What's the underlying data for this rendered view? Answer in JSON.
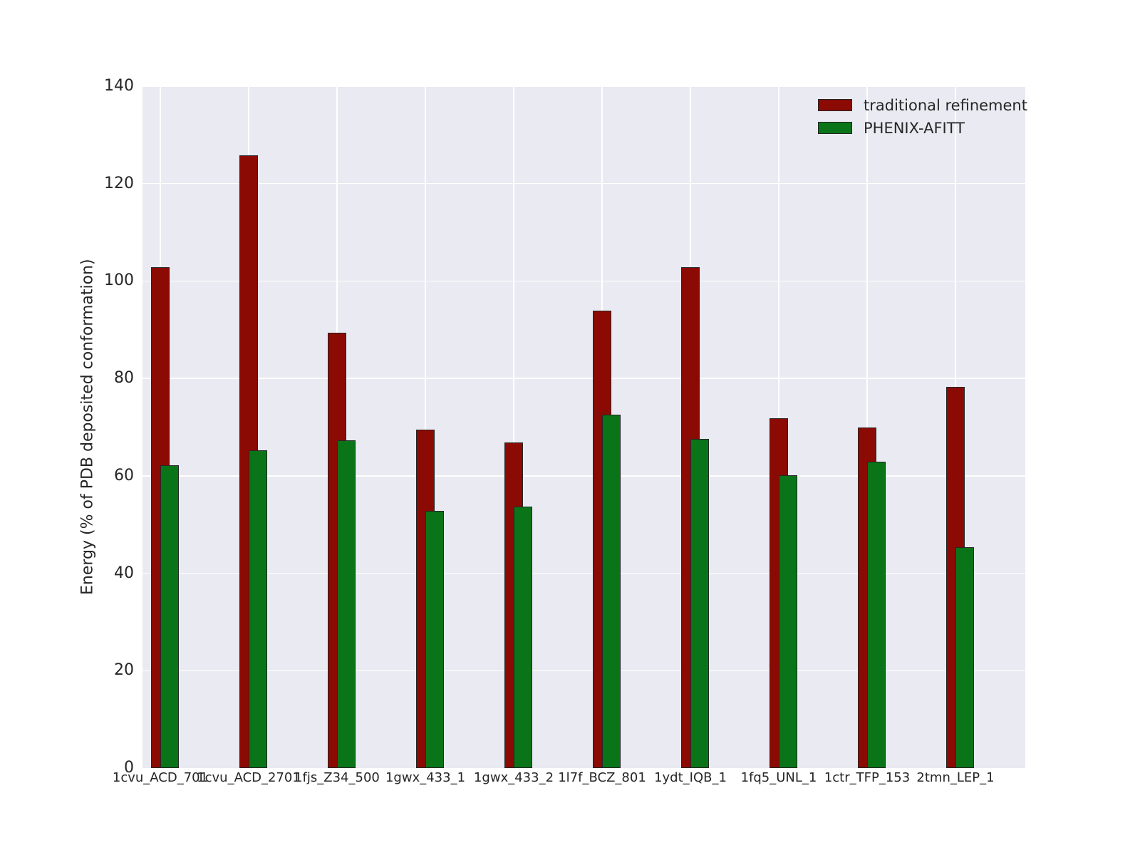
{
  "chart_data": {
    "type": "bar",
    "title": "",
    "xlabel": "",
    "ylabel": "Energy (% of PDB deposited conformation)",
    "ylim": [
      0,
      140
    ],
    "yticks": [
      0,
      20,
      40,
      60,
      80,
      100,
      120,
      140
    ],
    "grid": true,
    "legend_position": "upper right",
    "plot_bg_color": "#eaeaf2",
    "grid_color": "#ffffff",
    "bar_edge_color": "#262626",
    "categories": [
      "1cvu_ACD_701",
      "1cvu_ACD_2701",
      "1fjs_Z34_500",
      "1gwx_433_1",
      "1gwx_433_2",
      "1l7f_BCZ_801",
      "1ydt_IQB_1",
      "1fq5_UNL_1",
      "1ctr_TFP_153",
      "2tmn_LEP_1"
    ],
    "series": [
      {
        "name": "traditional refinement",
        "color": "#8b0a03",
        "values": [
          102.8,
          125.8,
          89.4,
          69.5,
          66.9,
          93.9,
          102.8,
          71.8,
          69.9,
          78.3
        ]
      },
      {
        "name": "PHENIX-AFITT",
        "color": "#0a7518",
        "values": [
          62.2,
          65.2,
          67.3,
          52.8,
          53.7,
          72.6,
          67.6,
          60.1,
          62.9,
          45.3
        ]
      }
    ]
  }
}
